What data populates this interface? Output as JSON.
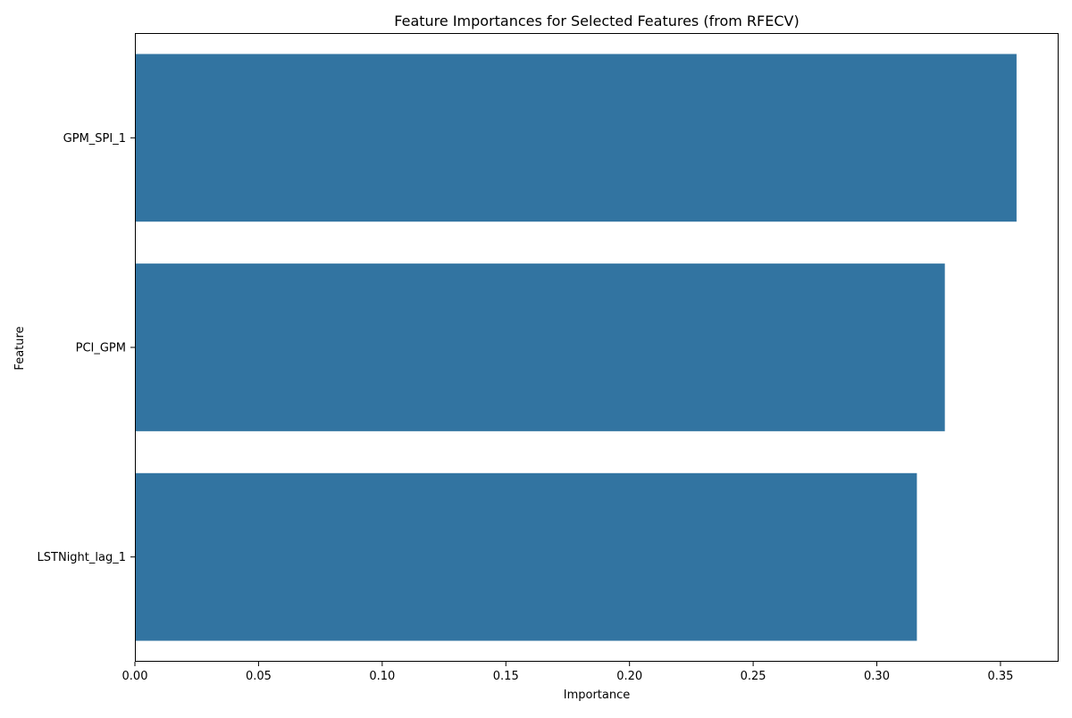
{
  "chart_data": {
    "type": "bar",
    "orientation": "horizontal",
    "title": "Feature Importances for Selected Features (from RFECV)",
    "xlabel": "Importance",
    "ylabel": "Feature",
    "categories": [
      "GPM_SPI_1",
      "PCI_GPM",
      "LSTNight_lag_1"
    ],
    "values": [
      0.3565,
      0.3275,
      0.3162
    ],
    "xlim": [
      0,
      0.3735
    ],
    "xticks": [
      0.0,
      0.05,
      0.1,
      0.15,
      0.2,
      0.25,
      0.3,
      0.35
    ],
    "xtick_labels": [
      "0.00",
      "0.05",
      "0.10",
      "0.15",
      "0.20",
      "0.25",
      "0.30",
      "0.35"
    ],
    "grid": false,
    "legend": "none",
    "bar_color": "#3274a1"
  }
}
